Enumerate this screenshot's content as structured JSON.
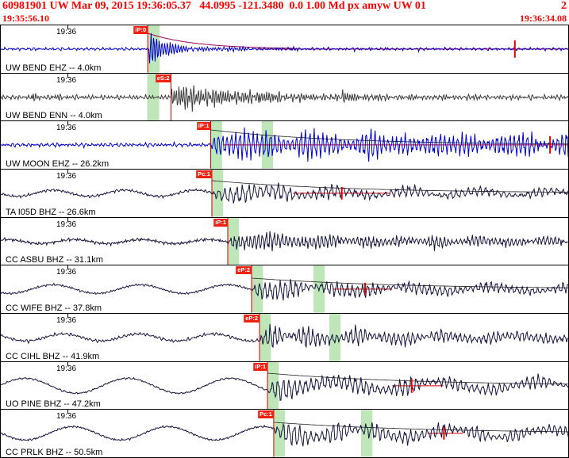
{
  "header": {
    "event_line": "60981901 UW Mar 09, 2015 19:36:05.37   44.0995 -121.3480  0.0 1.00 Md px amyw UW 01",
    "right_value": "2",
    "start_time": "19:35:56.10",
    "end_time": "19:36:34.08",
    "text_color": "#ff0000"
  },
  "colors": {
    "pick_red": "#ee2211",
    "line_red": "#dd0000",
    "band_green": "#bfe6b8",
    "blue_trace": "#0000cc",
    "dark_trace": "#16163e",
    "gray_trace": "#3c3c3c"
  },
  "traces": [
    {
      "station": "UW BEND EHZ -- 4.0km",
      "time_label": "19:36",
      "pick": {
        "label": "iP:0",
        "x": 0.259
      },
      "bands": [
        [
          0.259,
          0.28
        ]
      ],
      "red_segment": [
        0.45,
        1.0
      ],
      "amp_bar": {
        "x": 0.906,
        "h": 22
      },
      "envelope": {
        "amp": 20,
        "k": 12,
        "to": 0.52,
        "color": "#990055"
      },
      "wave": {
        "seed": 11,
        "color": "#0000cc",
        "noise": 1.3,
        "onset": 0.262,
        "burstAmp": 21,
        "decay": 22,
        "sustain": 1.6,
        "sustainDecay": 2.0,
        "period": 3.4
      }
    },
    {
      "station": "UW BEND ENN -- 4.0km",
      "time_label": "19:36",
      "pick": {
        "label": "eS:2",
        "x": 0.3
      },
      "bands": [
        [
          0.258,
          0.279
        ]
      ],
      "wave": {
        "seed": 22,
        "color": "#3c3c3c",
        "noise": 2.6,
        "onset": 0.3,
        "burstAmp": 18,
        "decay": 9,
        "sustain": 6.0,
        "sustainDecay": 2.6,
        "period": 3.1,
        "extras": [
          [
            0.055,
            6,
            90
          ],
          [
            0.095,
            5,
            110
          ],
          [
            0.455,
            8,
            22
          ],
          [
            0.6,
            7,
            22
          ]
        ]
      }
    },
    {
      "station": "UW MOON EHZ -- 26.2km",
      "time_label": "19:36",
      "pick": {
        "label": "iP:1",
        "x": 0.37
      },
      "bands": [
        [
          0.37,
          0.39
        ],
        [
          0.46,
          0.48
        ]
      ],
      "red_segment": [
        0.392,
        1.0
      ],
      "amp_bar": {
        "x": 0.968,
        "h": 22
      },
      "coda": {
        "amp": 19,
        "k": 4.5
      },
      "wave": {
        "seed": 33,
        "color": "#0000cc",
        "noise": 1.6,
        "onset": 0.372,
        "burstAmp": 7,
        "decay": 8,
        "sustain": 18,
        "sustainDecay": 0.35,
        "period": 5.5
      }
    },
    {
      "station": "TA I05D BHZ -- 26.6km",
      "time_label": "19:36",
      "pick": {
        "label": "Pc:1",
        "x": 0.372
      },
      "bands": [
        [
          0.372,
          0.392
        ]
      ],
      "red_segment": [
        0.515,
        0.685
      ],
      "amp_bar": {
        "x": 0.601,
        "h": 16
      },
      "coda": {
        "amp": 16,
        "k": 4.0
      },
      "wave": {
        "seed": 44,
        "color": "#16163e",
        "noise": 1.4,
        "lpAmp": 4.0,
        "lpPeriod": 90,
        "lpAfter": 0.7,
        "onset": 0.374,
        "burstAmp": 7,
        "decay": 8,
        "sustain": 9,
        "sustainDecay": 1.1,
        "period": 7.5
      }
    },
    {
      "station": "CC ASBU BHZ -- 31.1km",
      "time_label": "19:36",
      "pick": {
        "label": "iP:1",
        "x": 0.4
      },
      "bands": [
        [
          0.4,
          0.42
        ]
      ],
      "wave": {
        "seed": 55,
        "color": "#16163e",
        "noise": 1.6,
        "lpAmp": 2.6,
        "lpPeriod": 85,
        "onset": 0.402,
        "burstAmp": 6,
        "decay": 8,
        "sustain": 9.5,
        "sustainDecay": 0.9,
        "period": 5.0
      }
    },
    {
      "station": "CC WIFE BHZ -- 37.8km",
      "time_label": "19:36",
      "pick": {
        "label": "eP:2",
        "x": 0.442
      },
      "bands": [
        [
          0.442,
          0.462
        ],
        [
          0.551,
          0.571
        ]
      ],
      "red_segment": [
        0.585,
        0.688
      ],
      "amp_bar": {
        "x": 0.642,
        "h": 16
      },
      "coda": {
        "amp": 14,
        "k": 3.8
      },
      "wave": {
        "seed": 66,
        "color": "#16163e",
        "noise": 1.2,
        "lpAmp": 5.5,
        "lpPeriod": 110,
        "onset": 0.444,
        "burstAmp": 6,
        "decay": 8,
        "sustain": 9.5,
        "sustainDecay": 0.8,
        "period": 6.5
      }
    },
    {
      "station": "CC CIHL BHZ -- 41.9km",
      "time_label": "19:36",
      "pick": {
        "label": "eP:2",
        "x": 0.456
      },
      "bands": [
        [
          0.456,
          0.476
        ],
        [
          0.579,
          0.599
        ]
      ],
      "wave": {
        "seed": 77,
        "color": "#16163e",
        "noise": 1.5,
        "lpAmp": 4.5,
        "lpPeriod": 95,
        "onset": 0.458,
        "burstAmp": 6.5,
        "decay": 8,
        "sustain": 10,
        "sustainDecay": 0.8,
        "period": 6.0
      }
    },
    {
      "station": "UO PINE BHZ -- 47.2km",
      "time_label": "19:36",
      "pick": {
        "label": "iP:1",
        "x": 0.47
      },
      "bands": [
        [
          0.47,
          0.49
        ]
      ],
      "red_segment": [
        0.69,
        0.78
      ],
      "amp_bar": {
        "x": 0.724,
        "h": 18
      },
      "coda": {
        "amp": 16,
        "k": 3.8
      },
      "wave": {
        "seed": 88,
        "color": "#16163e",
        "noise": 0.9,
        "lpAmp": 9.5,
        "lpPeriod": 130,
        "lpAfter": 0.55,
        "onset": 0.472,
        "burstAmp": 7,
        "decay": 8,
        "sustain": 10.5,
        "sustainDecay": 0.7,
        "period": 7.0
      }
    },
    {
      "station": "CC PRLK BHZ -- 50.5km",
      "time_label": "19:36",
      "pick": {
        "label": "Pc:1",
        "x": 0.481
      },
      "bands": [
        [
          0.481,
          0.501
        ],
        [
          0.635,
          0.655
        ]
      ],
      "red_segment": [
        0.752,
        0.815
      ],
      "amp_bar": {
        "x": 0.781,
        "h": 16
      },
      "coda": {
        "amp": 14,
        "k": 3.8
      },
      "wave": {
        "seed": 99,
        "color": "#16163e",
        "noise": 0.9,
        "lpAmp": 8.5,
        "lpPeriod": 120,
        "lpAfter": 0.6,
        "onset": 0.483,
        "burstAmp": 6.5,
        "decay": 8,
        "sustain": 10.5,
        "sustainDecay": 0.7,
        "period": 7.0
      }
    }
  ]
}
